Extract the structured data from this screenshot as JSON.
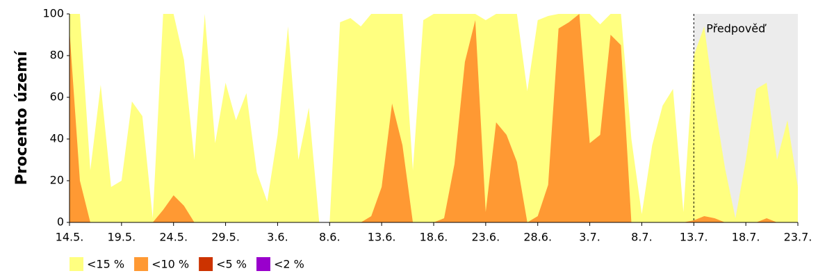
{
  "chart_data": {
    "type": "area",
    "y_label": "Procento území",
    "categories": [
      "14.5.",
      null,
      null,
      null,
      null,
      "19.5.",
      null,
      null,
      null,
      null,
      "24.5.",
      null,
      null,
      null,
      null,
      "29.5.",
      null,
      null,
      null,
      null,
      "3.6.",
      null,
      null,
      null,
      null,
      "8.6.",
      null,
      null,
      null,
      null,
      "13.6.",
      null,
      null,
      null,
      null,
      "18.6.",
      null,
      null,
      null,
      null,
      "23.6.",
      null,
      null,
      null,
      null,
      "28.6.",
      null,
      null,
      null,
      null,
      "3.7.",
      null,
      null,
      null,
      null,
      "8.7.",
      null,
      null,
      null,
      null,
      "13.7.",
      null,
      null,
      null,
      null,
      "18.7.",
      null,
      null,
      null,
      null,
      "23.7."
    ],
    "series": [
      {
        "name": "<15 %",
        "color": "#ffff80",
        "values": [
          100,
          100,
          25,
          66,
          17,
          20,
          58,
          51,
          2,
          100,
          100,
          78,
          30,
          100,
          38,
          67,
          49,
          62,
          24,
          10,
          42,
          94,
          30,
          55,
          0,
          0,
          96,
          98,
          94,
          100,
          100,
          100,
          100,
          25,
          97,
          100,
          100,
          100,
          100,
          100,
          97,
          100,
          100,
          100,
          63,
          97,
          99,
          100,
          100,
          100,
          100,
          95,
          100,
          100,
          40,
          4,
          37,
          56,
          64,
          5,
          80,
          94,
          57,
          26,
          2,
          30,
          64,
          67,
          30,
          49,
          17
        ]
      },
      {
        "name": "<10 %",
        "color": "#ff9933",
        "values": [
          92,
          20,
          0,
          0,
          0,
          0,
          0,
          0,
          0,
          6,
          13,
          8,
          0,
          0,
          0,
          0,
          0,
          0,
          0,
          0,
          0,
          0,
          0,
          0,
          0,
          0,
          0,
          0,
          0,
          3,
          17,
          57,
          37,
          0,
          0,
          0,
          2,
          28,
          77,
          97,
          5,
          48,
          42,
          29,
          0,
          3,
          18,
          93,
          96,
          100,
          38,
          42,
          90,
          85,
          0,
          0,
          0,
          0,
          0,
          0,
          1,
          3,
          2,
          0,
          0,
          0,
          0,
          2,
          0,
          0,
          0
        ]
      },
      {
        "name": "<5 %",
        "color": "#cc3300",
        "values": [
          0,
          0,
          0,
          0,
          0,
          0,
          0,
          0,
          0,
          0,
          0,
          0,
          0,
          0,
          0,
          0,
          0,
          0,
          0,
          0,
          0,
          0,
          0,
          0,
          0,
          0,
          0,
          0,
          0,
          0,
          0,
          0,
          0,
          0,
          0,
          0,
          0,
          0,
          0,
          0,
          0,
          0,
          0,
          0,
          0,
          0,
          0,
          0,
          0,
          0,
          0,
          0,
          0,
          0,
          0,
          0,
          0,
          0,
          0,
          0,
          0,
          0,
          0,
          0,
          0,
          0,
          0,
          0,
          0,
          0,
          0
        ]
      },
      {
        "name": "<2 %",
        "color": "#9900cc",
        "values": [
          0,
          0,
          0,
          0,
          0,
          0,
          0,
          0,
          0,
          0,
          0,
          0,
          0,
          0,
          0,
          0,
          0,
          0,
          0,
          0,
          0,
          0,
          0,
          0,
          0,
          0,
          0,
          0,
          0,
          0,
          0,
          0,
          0,
          0,
          0,
          0,
          0,
          0,
          0,
          0,
          0,
          0,
          0,
          0,
          0,
          0,
          0,
          0,
          0,
          0,
          0,
          0,
          0,
          0,
          0,
          0,
          0,
          0,
          0,
          0,
          0,
          0,
          0,
          0,
          0,
          0,
          0,
          0,
          0,
          0,
          0
        ]
      }
    ],
    "ylim": [
      0,
      100
    ],
    "yticks": [
      0,
      20,
      40,
      60,
      80,
      100
    ],
    "forecast": {
      "label": "Předpověď",
      "from": "13.7.",
      "color": "#ececec"
    }
  }
}
